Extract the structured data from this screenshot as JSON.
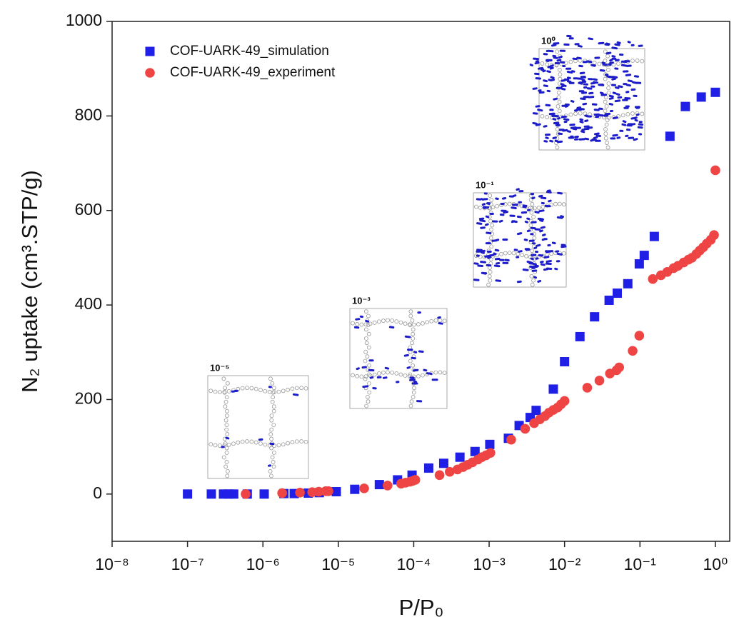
{
  "chart_data": {
    "type": "scatter",
    "xlabel": "P/P₀",
    "ylabel": "N₂ uptake (cm³.STP/g)",
    "xscale": "log",
    "xlim": [
      1e-08,
      1.55
    ],
    "ylim": [
      -100,
      1000
    ],
    "xticks": [
      {
        "value": 1e-08,
        "label": "10⁻⁸"
      },
      {
        "value": 1e-07,
        "label": "10⁻⁷"
      },
      {
        "value": 1e-06,
        "label": "10⁻⁶"
      },
      {
        "value": 1e-05,
        "label": "10⁻⁵"
      },
      {
        "value": 0.0001,
        "label": "10⁻⁴"
      },
      {
        "value": 0.001,
        "label": "10⁻³"
      },
      {
        "value": 0.01,
        "label": "10⁻²"
      },
      {
        "value": 0.1,
        "label": "10⁻¹"
      },
      {
        "value": 1,
        "label": "10⁰"
      }
    ],
    "yticks": [
      0,
      200,
      400,
      600,
      800,
      1000
    ],
    "legend": "upper left",
    "insets": [
      "10⁻⁵",
      "10⁻³",
      "10⁻¹",
      "10⁰"
    ],
    "series": [
      {
        "name": "COF-UARK-49_simulation",
        "color": "#1f1fe6",
        "marker": "square",
        "x": [
          1e-07,
          2.07e-07,
          3e-07,
          3.5e-07,
          4.1e-07,
          6.2e-07,
          1.04e-06,
          1.9e-06,
          2.6e-06,
          4e-06,
          5.6e-06,
          9.4e-06,
          1.65e-05,
          3.5e-05,
          6.1e-05,
          9.5e-05,
          0.000158,
          0.00025,
          0.00041,
          0.00065,
          0.00102,
          0.0018,
          0.0025,
          0.0035,
          0.0042,
          0.0071,
          0.01,
          0.016,
          0.025,
          0.039,
          0.05,
          0.069,
          0.098,
          0.114,
          0.155,
          0.25,
          0.4,
          0.65,
          1.0
        ],
        "values": [
          0,
          0,
          0,
          0,
          0,
          0,
          0,
          1,
          1,
          2,
          3,
          5,
          10,
          20,
          30,
          40,
          55,
          65,
          78,
          90,
          105,
          118,
          145,
          162,
          177,
          222,
          280,
          333,
          375,
          410,
          425,
          445,
          487,
          505,
          545,
          757,
          820,
          840,
          850
        ]
      },
      {
        "name": "COF-UARK-49_experiment",
        "color": "#ee4444",
        "marker": "circle",
        "x": [
          5.9e-07,
          1.8e-06,
          3.1e-06,
          4.5e-06,
          5.5e-06,
          6.8e-06,
          7.4e-06,
          2.2e-05,
          4.5e-05,
          6.8e-05,
          7.8e-05,
          8.9e-05,
          9.7e-05,
          0.000105,
          0.00022,
          0.0003,
          0.00038,
          0.00045,
          0.00052,
          0.0006,
          0.00071,
          0.0008,
          0.00091,
          0.00104,
          0.00196,
          0.003,
          0.00395,
          0.0047,
          0.0055,
          0.0062,
          0.0071,
          0.0081,
          0.009,
          0.01,
          0.02,
          0.029,
          0.04,
          0.049,
          0.053,
          0.08,
          0.098,
          0.148,
          0.19,
          0.23,
          0.28,
          0.32,
          0.38,
          0.44,
          0.49,
          0.56,
          0.62,
          0.69,
          0.77,
          0.87,
          0.96,
          1.0
        ],
        "values": [
          0,
          2,
          3,
          4,
          5,
          6,
          6,
          12,
          18,
          22,
          24,
          26,
          28,
          30,
          40,
          47,
          52,
          57,
          62,
          67,
          73,
          78,
          82,
          87,
          115,
          138,
          150,
          158,
          165,
          172,
          178,
          183,
          190,
          197,
          225,
          240,
          255,
          262,
          268,
          303,
          335,
          455,
          463,
          470,
          478,
          483,
          490,
          496,
          500,
          508,
          515,
          522,
          530,
          538,
          548,
          685
        ]
      }
    ]
  }
}
